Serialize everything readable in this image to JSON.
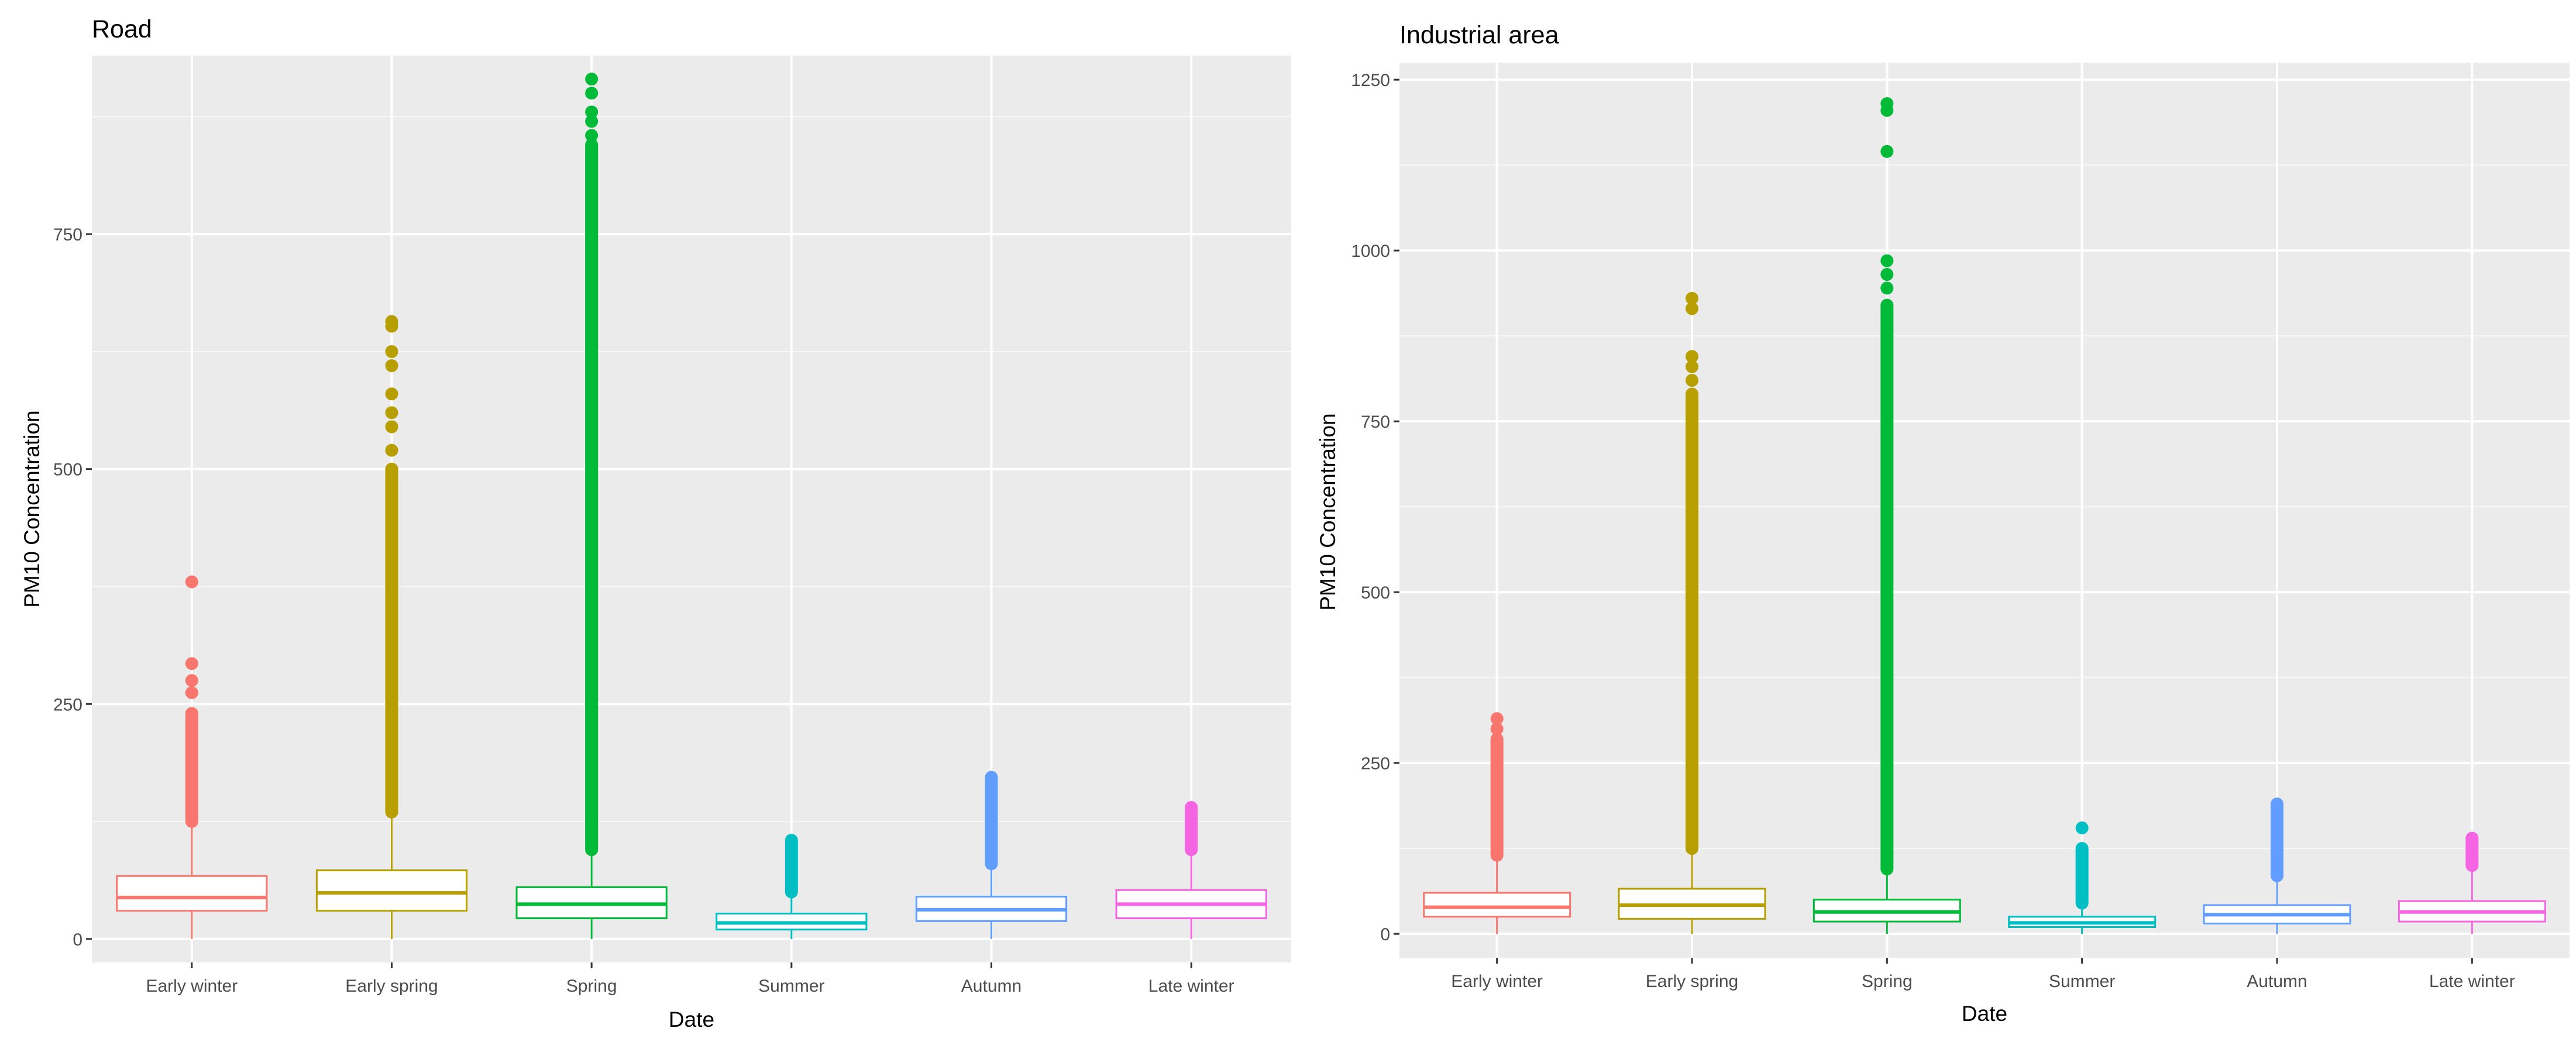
{
  "chart_data": [
    {
      "type": "boxplot",
      "title": "Road",
      "xlabel": "Date",
      "ylabel": "PM10 Concentration",
      "ylim": [
        -25,
        940
      ],
      "yticks": [
        0,
        250,
        500,
        750
      ],
      "categories": [
        "Early winter",
        "Early spring",
        "Spring",
        "Summer",
        "Autumn",
        "Late winter"
      ],
      "colors": [
        "#F8766D",
        "#B79F00",
        "#00BA38",
        "#00BFC4",
        "#619CFF",
        "#F564E3"
      ],
      "boxes": [
        {
          "category": "Early winter",
          "q1": 30,
          "median": 44,
          "q3": 67,
          "whisker_low": 0,
          "whisker_high": 125,
          "outlier_min": 125,
          "outlier_max": 240,
          "outliers": [
            262,
            275,
            293,
            380
          ]
        },
        {
          "category": "Early spring",
          "q1": 30,
          "median": 49,
          "q3": 73,
          "whisker_low": 0,
          "whisker_high": 135,
          "outlier_min": 135,
          "outlier_max": 500,
          "outliers": [
            520,
            545,
            560,
            580,
            610,
            625,
            652,
            657
          ]
        },
        {
          "category": "Spring",
          "q1": 22,
          "median": 37,
          "q3": 55,
          "whisker_low": 0,
          "whisker_high": 95,
          "outlier_min": 95,
          "outlier_max": 845,
          "outliers": [
            855,
            870,
            880,
            900,
            915
          ]
        },
        {
          "category": "Summer",
          "q1": 10,
          "median": 17,
          "q3": 27,
          "whisker_low": 0,
          "whisker_high": 50,
          "outlier_min": 50,
          "outlier_max": 105,
          "outliers": []
        },
        {
          "category": "Autumn",
          "q1": 19,
          "median": 31,
          "q3": 45,
          "whisker_low": 0,
          "whisker_high": 80,
          "outlier_min": 80,
          "outlier_max": 172,
          "outliers": []
        },
        {
          "category": "Late winter",
          "q1": 22,
          "median": 37,
          "q3": 52,
          "whisker_low": 0,
          "whisker_high": 95,
          "outlier_min": 95,
          "outlier_max": 140,
          "outliers": []
        }
      ]
    },
    {
      "type": "boxplot",
      "title": "Industrial area",
      "xlabel": "Date",
      "ylabel": "PM10 Concentration",
      "ylim": [
        -35,
        1275
      ],
      "yticks": [
        0,
        250,
        500,
        750,
        1000,
        1250
      ],
      "categories": [
        "Early winter",
        "Early spring",
        "Spring",
        "Summer",
        "Autumn",
        "Late winter"
      ],
      "colors": [
        "#F8766D",
        "#B79F00",
        "#00BA38",
        "#00BFC4",
        "#619CFF",
        "#F564E3"
      ],
      "boxes": [
        {
          "category": "Early winter",
          "q1": 25,
          "median": 39,
          "q3": 60,
          "whisker_low": 0,
          "whisker_high": 115,
          "outlier_min": 115,
          "outlier_max": 285,
          "outliers": [
            300,
            315
          ]
        },
        {
          "category": "Early spring",
          "q1": 22,
          "median": 42,
          "q3": 66,
          "whisker_low": 0,
          "whisker_high": 125,
          "outlier_min": 125,
          "outlier_max": 790,
          "outliers": [
            810,
            830,
            845,
            915,
            930
          ]
        },
        {
          "category": "Spring",
          "q1": 18,
          "median": 32,
          "q3": 50,
          "whisker_low": 0,
          "whisker_high": 95,
          "outlier_min": 95,
          "outlier_max": 920,
          "outliers": [
            945,
            965,
            985,
            1145,
            1205,
            1215
          ]
        },
        {
          "category": "Summer",
          "q1": 10,
          "median": 16,
          "q3": 25,
          "whisker_low": 0,
          "whisker_high": 45,
          "outlier_min": 45,
          "outlier_max": 125,
          "outliers": [
            155
          ]
        },
        {
          "category": "Autumn",
          "q1": 15,
          "median": 28,
          "q3": 42,
          "whisker_low": 0,
          "whisker_high": 85,
          "outlier_min": 85,
          "outlier_max": 190,
          "outliers": []
        },
        {
          "category": "Late winter",
          "q1": 18,
          "median": 32,
          "q3": 48,
          "whisker_low": 0,
          "whisker_high": 100,
          "outlier_min": 100,
          "outlier_max": 140,
          "outliers": []
        }
      ]
    }
  ]
}
